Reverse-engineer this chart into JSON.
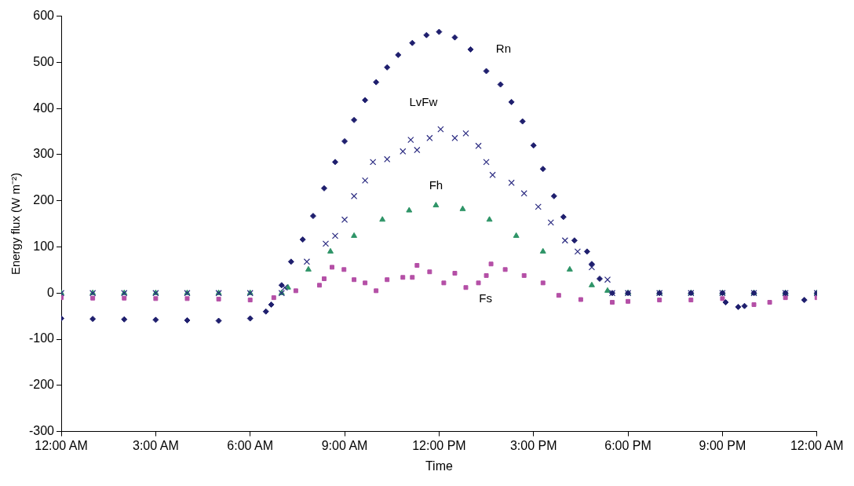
{
  "chart_data": {
    "type": "scatter",
    "xlabel": "Time",
    "ylabel": "Energy flux (W m⁻²)",
    "xlim": [
      0,
      24
    ],
    "xticks": [
      {
        "value": 0,
        "label": "12:00 AM"
      },
      {
        "value": 3,
        "label": "3:00 AM"
      },
      {
        "value": 6,
        "label": "6:00 AM"
      },
      {
        "value": 9,
        "label": "9:00 AM"
      },
      {
        "value": 12,
        "label": "12:00 PM"
      },
      {
        "value": 15,
        "label": "3:00 PM"
      },
      {
        "value": 18,
        "label": "6:00 PM"
      },
      {
        "value": 21,
        "label": "9:00 PM"
      },
      {
        "value": 24,
        "label": "12:00 AM"
      }
    ],
    "ylim": [
      -300,
      600
    ],
    "yticks": [
      -300,
      -200,
      -100,
      0,
      100,
      200,
      300,
      400,
      500,
      600
    ],
    "grid": false,
    "series": [
      {
        "name": "Rn",
        "color": "#1f1f6e",
        "marker": "diamond",
        "x": [
          0,
          1,
          2,
          3,
          4,
          5,
          6,
          6.5,
          6.67,
          7,
          7.3,
          7.67,
          8,
          8.35,
          8.7,
          9,
          9.3,
          9.65,
          10,
          10.35,
          10.7,
          11.15,
          11.6,
          12,
          12.5,
          13,
          13.5,
          13.95,
          14.3,
          14.65,
          15,
          15.3,
          15.65,
          15.95,
          16.3,
          16.7,
          16.85,
          17.1,
          17.5,
          18,
          19,
          20,
          21,
          21.1,
          21.5,
          21.7,
          22,
          23,
          23.6,
          24
        ],
        "values": [
          -55,
          -56,
          -57,
          -58,
          -59,
          -60,
          -55,
          -40,
          -25,
          17,
          68,
          116,
          167,
          227,
          284,
          329,
          375,
          418,
          457,
          489,
          516,
          542,
          559,
          566,
          554,
          528,
          481,
          452,
          414,
          372,
          320,
          269,
          210,
          165,
          114,
          90,
          63,
          31,
          0,
          0,
          0,
          0,
          0,
          -20,
          -30,
          -28,
          0,
          0,
          -15,
          0
        ]
      },
      {
        "name": "LvFw",
        "color": "#2a2a80",
        "marker": "cross",
        "x": [
          0,
          1,
          2,
          3,
          4,
          5,
          6,
          7,
          7.1,
          7.8,
          8.4,
          8.7,
          9,
          9.3,
          9.65,
          9.9,
          10.35,
          10.85,
          11.1,
          11.3,
          11.7,
          12.05,
          12.5,
          12.85,
          13.25,
          13.5,
          13.7,
          14.3,
          14.7,
          15.15,
          15.55,
          16,
          16.4,
          16.85,
          17.35,
          17.5,
          18,
          19,
          20,
          21,
          22,
          23,
          24
        ],
        "values": [
          0,
          0,
          0,
          0,
          0,
          0,
          0,
          0,
          12,
          68,
          107,
          124,
          159,
          210,
          244,
          284,
          290,
          307,
          332,
          310,
          336,
          355,
          336,
          346,
          319,
          284,
          256,
          239,
          216,
          187,
          153,
          114,
          90,
          56,
          29,
          0,
          0,
          0,
          0,
          0,
          0,
          0,
          0
        ]
      },
      {
        "name": "Fh",
        "color": "#2e9467",
        "marker": "triangle",
        "x": [
          0,
          1,
          2,
          3,
          4,
          5,
          6,
          7,
          7.2,
          7.85,
          8.55,
          9.3,
          10.2,
          11.05,
          11.9,
          12.75,
          13.6,
          14.45,
          15.3,
          16.15,
          16.85,
          17.35,
          18,
          19,
          20,
          21,
          22,
          23,
          24
        ],
        "values": [
          0,
          0,
          0,
          0,
          0,
          0,
          0,
          0,
          12,
          51,
          90,
          124,
          159,
          179,
          190,
          182,
          159,
          124,
          90,
          51,
          17,
          5,
          0,
          0,
          0,
          0,
          0,
          0,
          0
        ]
      },
      {
        "name": "Fs",
        "color": "#b44fa6",
        "marker": "square",
        "x": [
          0,
          1,
          2,
          3,
          4,
          5,
          6,
          6.75,
          7.45,
          8.2,
          8.35,
          8.6,
          8.98,
          9.3,
          9.65,
          10,
          10.35,
          10.85,
          11.15,
          11.3,
          11.7,
          12.15,
          12.5,
          12.85,
          13.25,
          13.5,
          13.65,
          14.1,
          14.7,
          15.3,
          15.8,
          16.5,
          17.5,
          18,
          19,
          20,
          21,
          22,
          22.5,
          23,
          24
        ],
        "values": [
          -10,
          -11,
          -11,
          -12,
          -12,
          -13,
          -15,
          -10,
          5,
          17,
          31,
          56,
          51,
          29,
          22,
          5,
          29,
          34,
          34,
          60,
          46,
          22,
          43,
          12,
          22,
          38,
          63,
          51,
          38,
          22,
          -5,
          -14,
          -20,
          -18,
          -15,
          -15,
          -12,
          -25,
          -20,
          -10,
          -10
        ]
      }
    ]
  }
}
